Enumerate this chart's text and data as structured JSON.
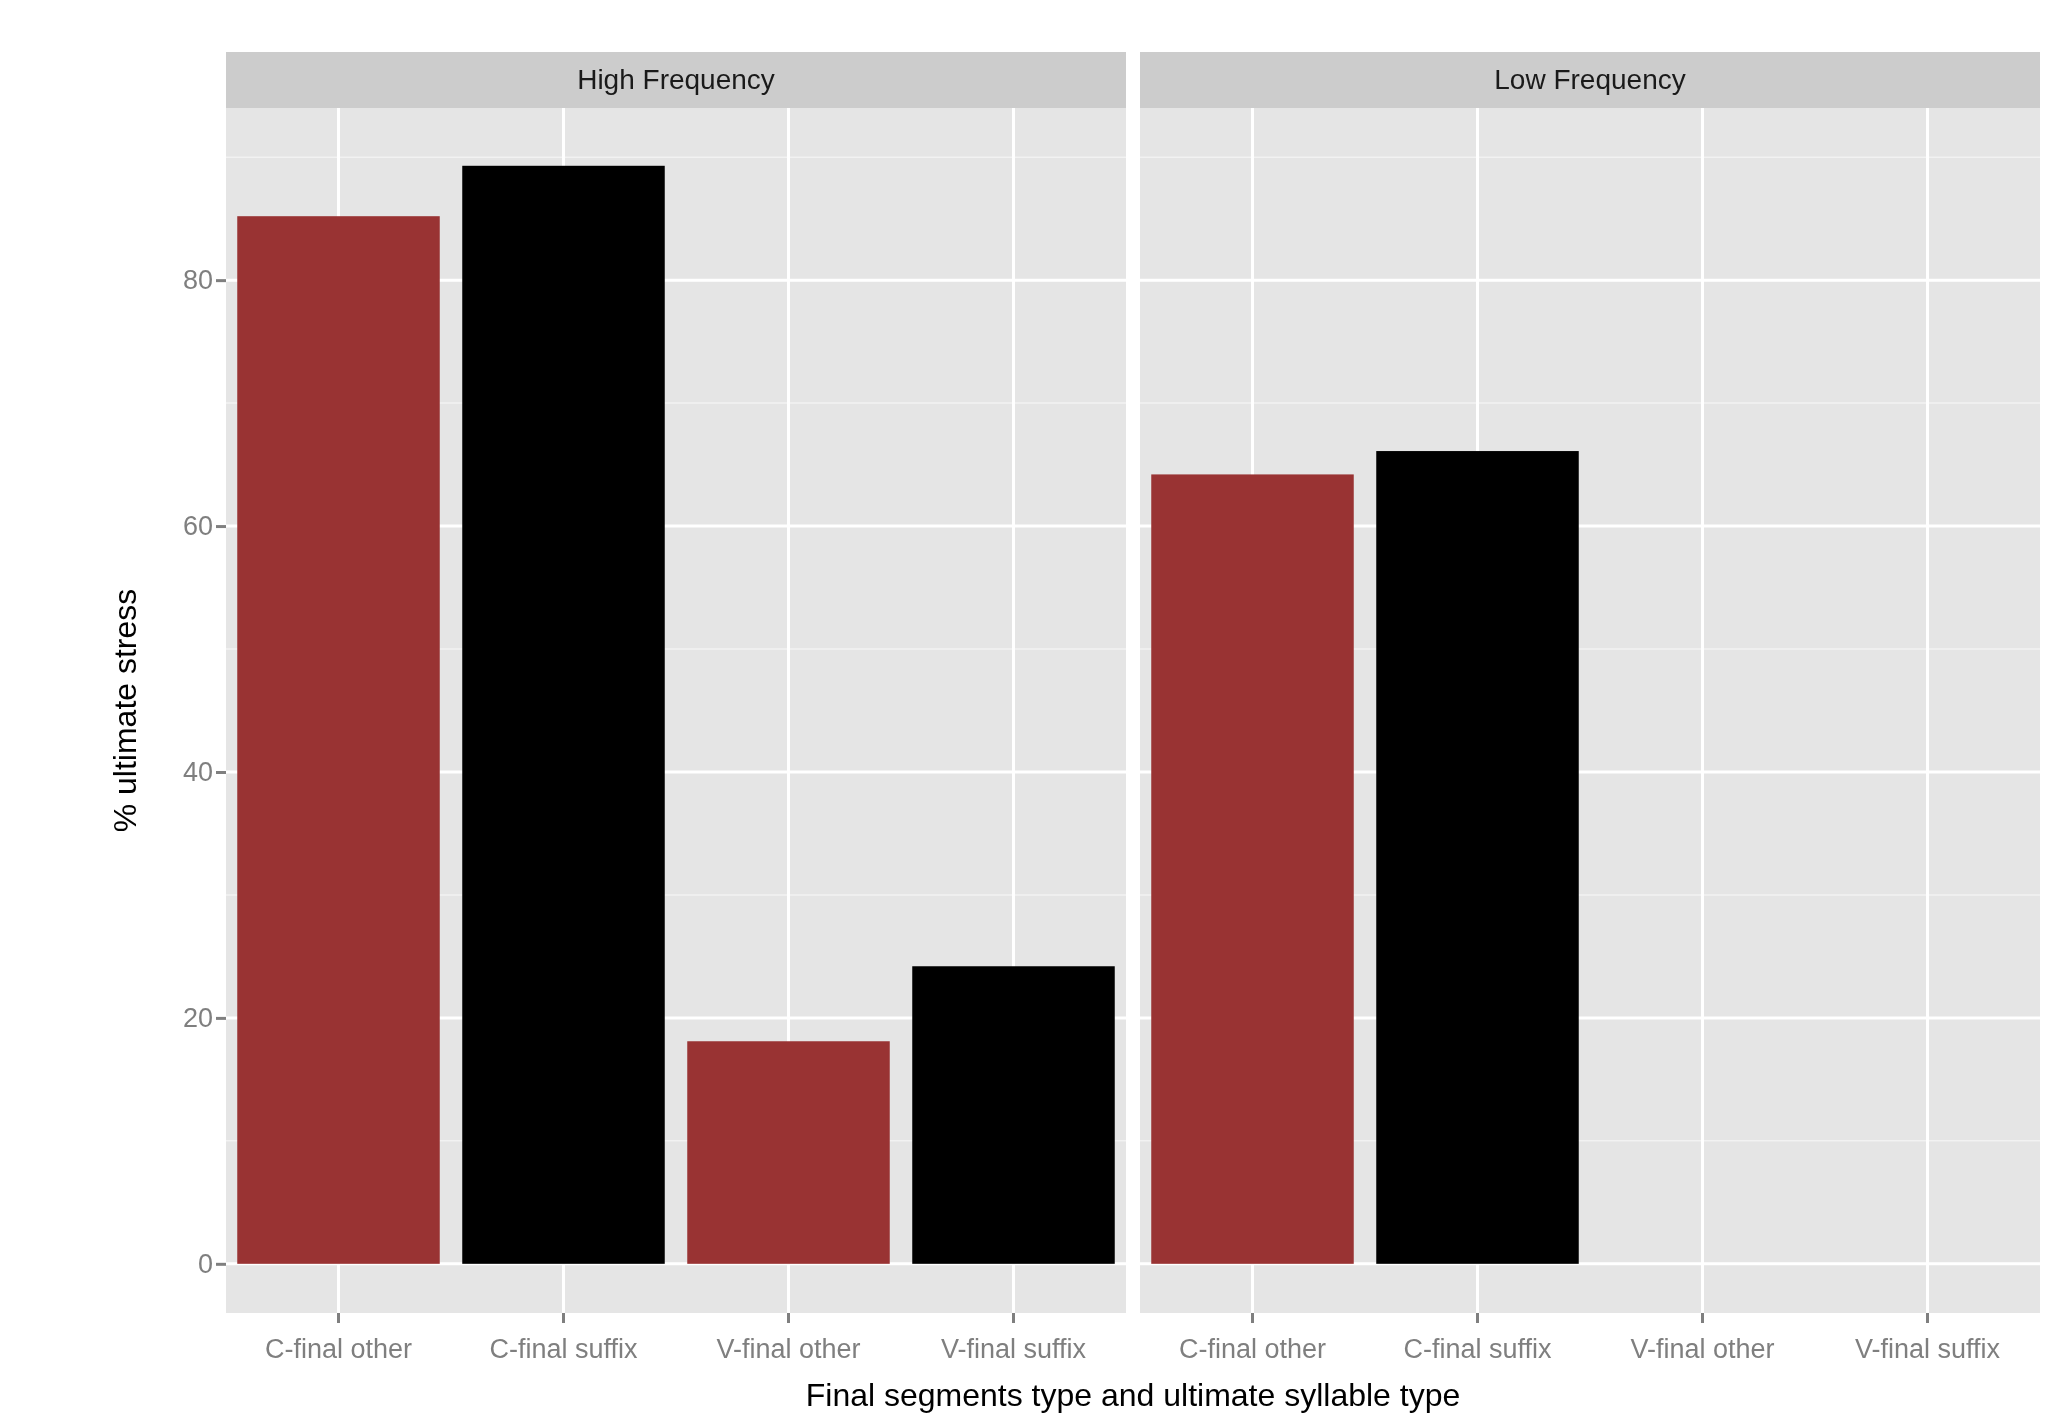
{
  "chart_data": [
    {
      "type": "bar",
      "title": "High Frequency",
      "ylabel": "% ultimate stress",
      "xlabel": "Final segments type and ultimate syllable type",
      "categories": [
        "C-final other",
        "C-final suffix",
        "V-final other",
        "V-final suffix"
      ],
      "values": [
        85.2,
        89.3,
        18.1,
        24.2
      ],
      "colors": [
        "#993333",
        "#000000",
        "#993333",
        "#000000"
      ],
      "ylim": [
        -4,
        94
      ],
      "yticks": [
        0,
        20,
        40,
        60,
        80
      ],
      "grid": true
    },
    {
      "type": "bar",
      "title": "Low Frequency",
      "categories": [
        "C-final other",
        "C-final suffix",
        "V-final other",
        "V-final suffix"
      ],
      "values": [
        64.2,
        66.1,
        null,
        null
      ],
      "colors": [
        "#993333",
        "#000000",
        null,
        null
      ],
      "ylim": [
        -4,
        94
      ],
      "yticks": [
        0,
        20,
        40,
        60,
        80
      ],
      "grid": true,
      "tick_labels": "x"
    }
  ]
}
